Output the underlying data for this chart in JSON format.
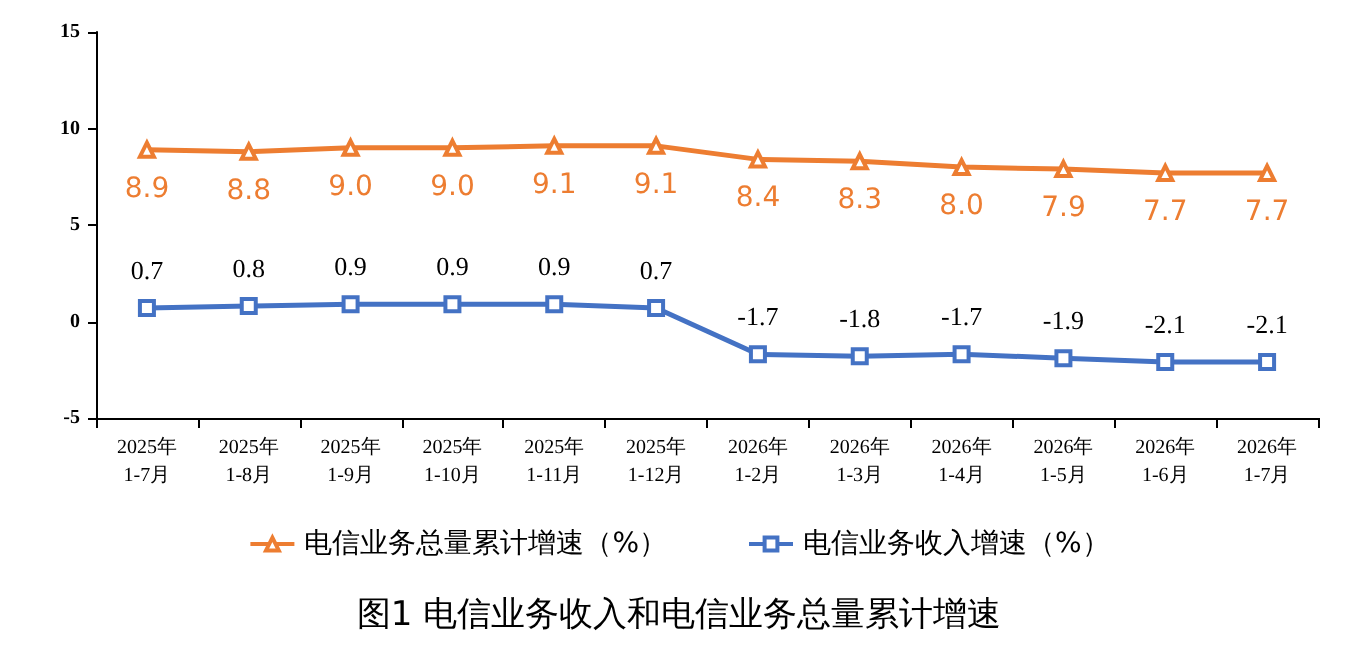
{
  "chart_data": {
    "type": "line",
    "title": "图1 电信业务收入和电信业务总量累计增速",
    "categories": [
      "2025年\n1-7月",
      "2025年\n1-8月",
      "2025年\n1-9月",
      "2025年\n1-10月",
      "2025年\n1-11月",
      "2025年\n1-12月",
      "2026年\n1-2月",
      "2026年\n1-3月",
      "2026年\n1-4月",
      "2026年\n1-5月",
      "2026年\n1-6月",
      "2026年\n1-7月"
    ],
    "series": [
      {
        "name": "电信业务总量累计增速（%）",
        "color": "#ed7d31",
        "marker": "triangle",
        "values": [
          8.9,
          8.8,
          9.0,
          9.0,
          9.1,
          9.1,
          8.4,
          8.3,
          8.0,
          7.9,
          7.7,
          7.7
        ],
        "value_labels": [
          "8.9",
          "8.8",
          "9.0",
          "9.0",
          "9.1",
          "9.1",
          "8.4",
          "8.3",
          "8.0",
          "7.9",
          "7.7",
          "7.7"
        ]
      },
      {
        "name": "电信业务收入增速（%）",
        "color": "#4472c4",
        "marker": "square",
        "values": [
          0.7,
          0.8,
          0.9,
          0.9,
          0.9,
          0.7,
          -1.7,
          -1.8,
          -1.7,
          -1.9,
          -2.1,
          -2.1
        ],
        "value_labels": [
          "0.7",
          "0.8",
          "0.9",
          "0.9",
          "0.9",
          "0.7",
          "-1.7",
          "-1.8",
          "-1.7",
          "-1.9",
          "-2.1",
          "-2.1"
        ]
      }
    ],
    "ylim": [
      -5,
      15
    ],
    "yticks": [
      -5,
      0,
      5,
      10,
      15
    ],
    "grid": false,
    "legend": "bottom"
  }
}
